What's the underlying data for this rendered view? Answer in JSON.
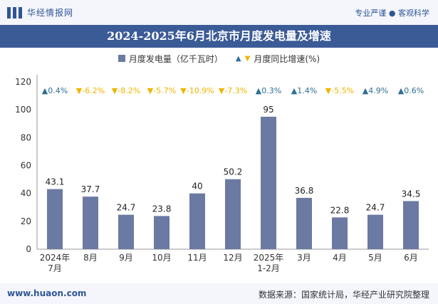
{
  "header": {
    "brand": "华经情报网",
    "tagline": "专业严谨 ● 客观科学"
  },
  "title": "2024-2025年6月北京市月度发电量及增速",
  "legend": {
    "bar_label": "月度发电量（亿千瓦时）",
    "growth_label": "月度同比增速(%)"
  },
  "footer": {
    "website": "www.huaon.com",
    "source": "数据来源：国家统计局，华经产业研究院整理"
  },
  "colors": {
    "bar": "#6b7aa2",
    "up": "#2c6f93",
    "down": "#f0b400",
    "title_bg": "#3b5b97"
  },
  "chart_data": {
    "type": "bar",
    "categories": [
      "2024年\n7月",
      "8月",
      "9月",
      "10月",
      "11月",
      "12月",
      "2025年\n1-2月",
      "3月",
      "4月",
      "5月",
      "6月"
    ],
    "series": [
      {
        "name": "月度发电量（亿千瓦时）",
        "values": [
          43.1,
          37.7,
          24.7,
          23.8,
          40,
          50.2,
          95,
          36.8,
          22.8,
          24.7,
          34.5
        ]
      }
    ],
    "growth": {
      "name": "月度同比增速(%)",
      "values": [
        0.4,
        -6.2,
        -8.2,
        -5.7,
        -10.9,
        -7.3,
        0.3,
        1.4,
        -5.5,
        4.9,
        0.6
      ]
    },
    "yticks": [
      0,
      20,
      40,
      60,
      80,
      100,
      120
    ],
    "ylim": [
      0,
      120
    ]
  }
}
